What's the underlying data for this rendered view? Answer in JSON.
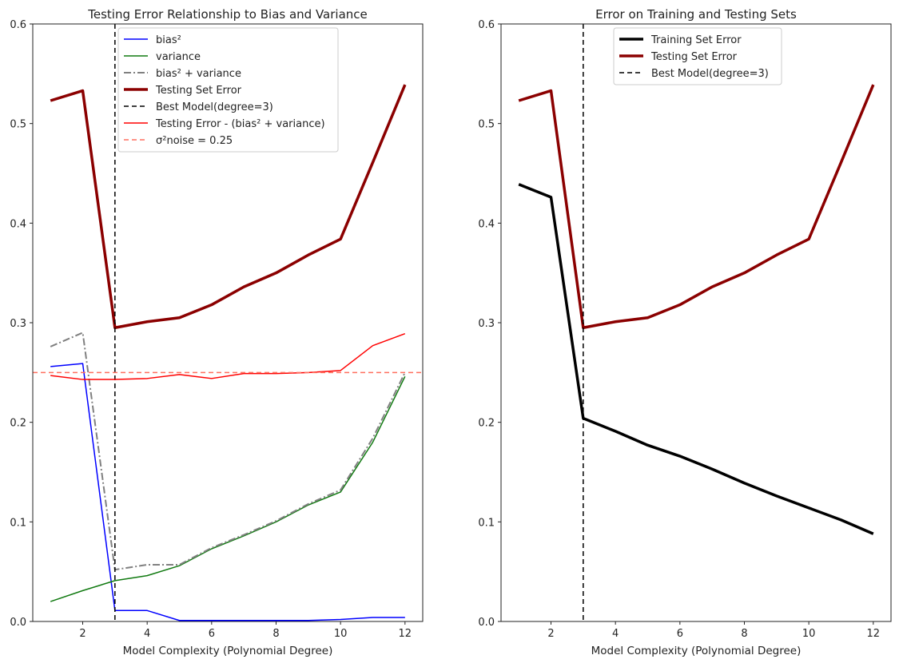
{
  "chart_data": [
    {
      "type": "line",
      "title": "Testing Error Relationship to Bias and Variance",
      "xlabel": "Model Complexity (Polynomial Degree)",
      "ylabel": "",
      "xlim": [
        0.45,
        12.55
      ],
      "ylim": [
        0,
        0.6
      ],
      "xticks": [
        2,
        4,
        6,
        8,
        10,
        12
      ],
      "yticks": [
        0.0,
        0.1,
        0.2,
        0.3,
        0.4,
        0.5,
        0.6
      ],
      "x": [
        1,
        2,
        3,
        4,
        5,
        6,
        7,
        8,
        9,
        10,
        11,
        12
      ],
      "legend_position": "top-center",
      "series": [
        {
          "name": "bias²",
          "color": "#0000ff",
          "style": "solid",
          "width": 1.5,
          "values": [
            0.256,
            0.259,
            0.011,
            0.011,
            0.001,
            0.001,
            0.001,
            0.001,
            0.001,
            0.002,
            0.004,
            0.004
          ]
        },
        {
          "name": "variance",
          "color": "#117a11",
          "style": "solid",
          "width": 1.5,
          "values": [
            0.02,
            0.031,
            0.041,
            0.046,
            0.056,
            0.073,
            0.086,
            0.1,
            0.117,
            0.13,
            0.18,
            0.246
          ]
        },
        {
          "name": "bias² + variance",
          "color": "#808080",
          "style": "dashdot",
          "width": 2,
          "values": [
            0.276,
            0.29,
            0.052,
            0.057,
            0.057,
            0.074,
            0.087,
            0.101,
            0.118,
            0.132,
            0.184,
            0.25
          ]
        },
        {
          "name": "Testing Set Error",
          "color": "#8b0000",
          "style": "solid",
          "width": 3.5,
          "values": [
            0.523,
            0.533,
            0.295,
            0.301,
            0.305,
            0.318,
            0.336,
            0.35,
            0.368,
            0.384,
            0.461,
            0.539
          ]
        },
        {
          "name": "Best Model(degree=3)",
          "color": "#000000",
          "style": "vline-dashed",
          "width": 1.5,
          "x_value": 3
        },
        {
          "name": "Testing Error - (bias² + variance)",
          "color": "#ff0000",
          "style": "solid",
          "width": 1.5,
          "values": [
            0.247,
            0.243,
            0.243,
            0.244,
            0.248,
            0.244,
            0.249,
            0.249,
            0.25,
            0.252,
            0.277,
            0.289
          ]
        },
        {
          "name": "σ²noise = 0.25",
          "color": "#ff6f5e",
          "style": "hline-dashed",
          "width": 1.5,
          "y_value": 0.25
        }
      ]
    },
    {
      "type": "line",
      "title": "Error on Training and Testing Sets",
      "xlabel": "Model Complexity (Polynomial Degree)",
      "ylabel": "",
      "xlim": [
        0.45,
        12.55
      ],
      "ylim": [
        0,
        0.6
      ],
      "xticks": [
        2,
        4,
        6,
        8,
        10,
        12
      ],
      "yticks": [
        0.0,
        0.1,
        0.2,
        0.3,
        0.4,
        0.5,
        0.6
      ],
      "x": [
        1,
        2,
        3,
        4,
        5,
        6,
        7,
        8,
        9,
        10,
        11,
        12
      ],
      "legend_position": "top-center",
      "series": [
        {
          "name": "Training Set Error",
          "color": "#000000",
          "style": "solid",
          "width": 3.5,
          "values": [
            0.439,
            0.426,
            0.204,
            0.191,
            0.177,
            0.166,
            0.153,
            0.139,
            0.126,
            0.114,
            0.102,
            0.088
          ]
        },
        {
          "name": "Testing Set Error",
          "color": "#8b0000",
          "style": "solid",
          "width": 3.5,
          "values": [
            0.523,
            0.533,
            0.295,
            0.301,
            0.305,
            0.318,
            0.336,
            0.35,
            0.368,
            0.384,
            0.461,
            0.539
          ]
        },
        {
          "name": "Best Model(degree=3)",
          "color": "#000000",
          "style": "vline-dashed",
          "width": 1.5,
          "x_value": 3
        }
      ]
    }
  ]
}
